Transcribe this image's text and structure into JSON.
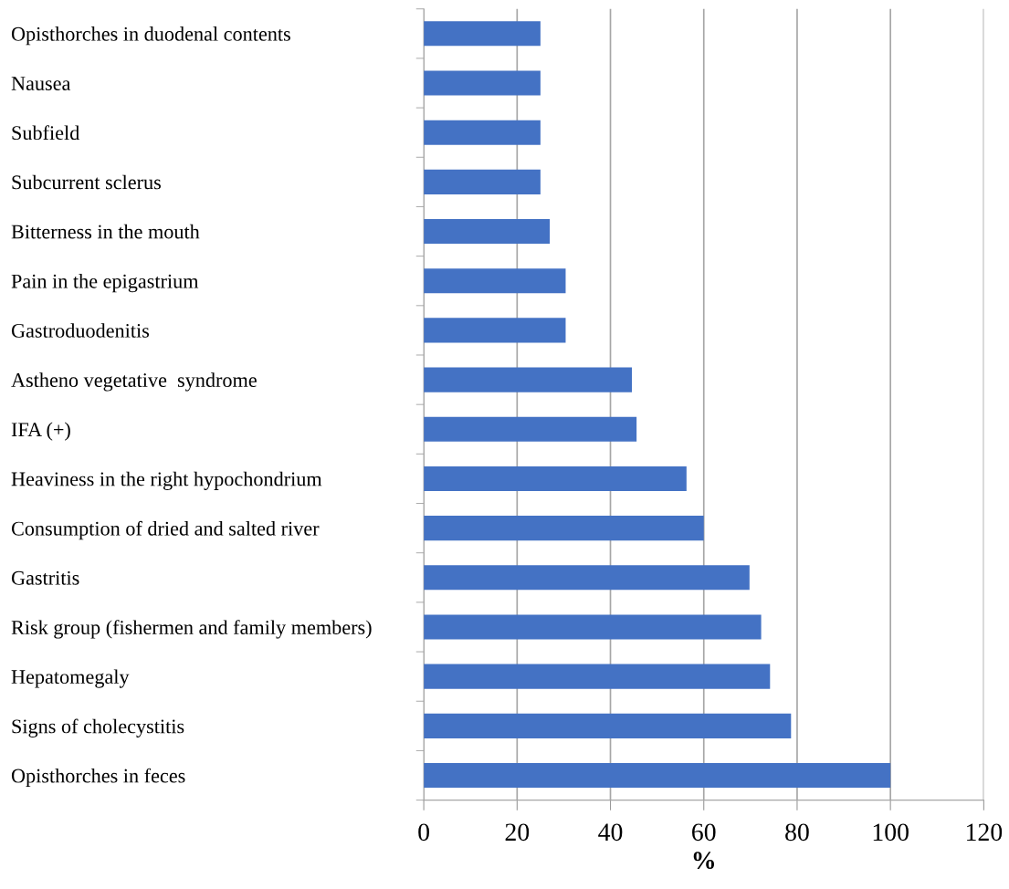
{
  "chart_data": {
    "type": "bar",
    "orientation": "horizontal",
    "xlabel": "%",
    "categories": [
      "Opisthorches in duodenal contents",
      "Nausea",
      "Subfield",
      "Subcurrent sclerus",
      "Bitterness in the mouth",
      "Pain in the epigastrium",
      "Gastroduodenitis",
      "Astheno vegetative  syndrome",
      "IFA (+)",
      "Heaviness in the right hypochondrium",
      "Consumption of dried and salted river",
      "Gastritis",
      "Risk group (fishermen and family members)",
      "Hepatomegaly",
      "Signs of cholecystitis",
      "Opisthorches in feces"
    ],
    "values": [
      25,
      25,
      25,
      25,
      27,
      30.4,
      30.4,
      44.6,
      45.6,
      56.3,
      60,
      69.8,
      72.3,
      74.2,
      78.7,
      100
    ],
    "color": "#4472c4",
    "xlim": [
      0,
      120
    ],
    "xticks": [
      0,
      20,
      40,
      60,
      80,
      100,
      120
    ],
    "grid": "x"
  }
}
